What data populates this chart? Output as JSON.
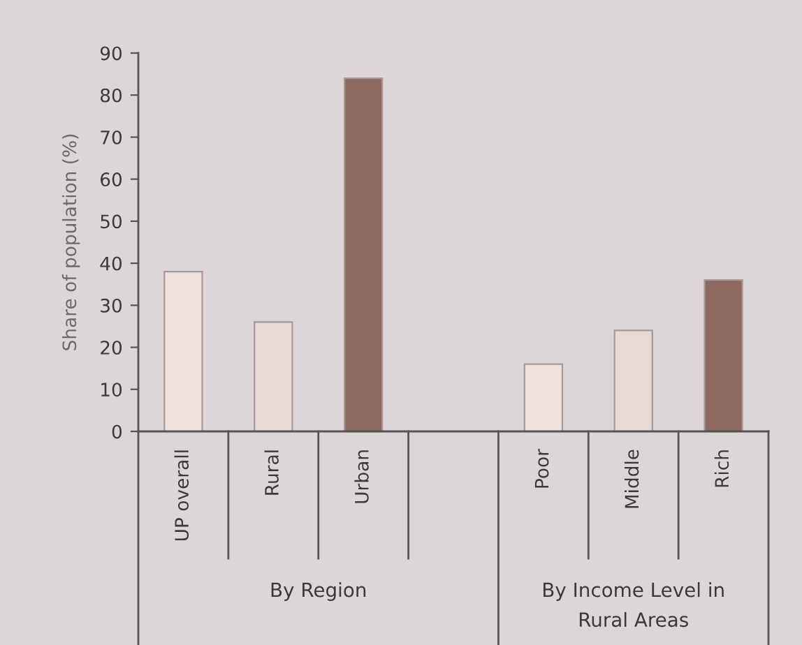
{
  "chart_data": {
    "type": "bar",
    "ylabel": "Share of population (%)",
    "categories": [
      "UP overall",
      "Rural",
      "Urban",
      null,
      "Poor",
      "Middle",
      "Rich"
    ],
    "values": [
      38,
      26,
      84,
      null,
      16,
      24,
      36
    ],
    "colors": [
      "#efe3df",
      "#e8dbd7",
      "#8c6a5f",
      null,
      "#efe1dd",
      "#e8dbd7",
      "#8c6a5f"
    ],
    "ylim": [
      0,
      90
    ],
    "yticks": [
      0,
      10,
      20,
      30,
      40,
      50,
      60,
      70,
      80,
      90
    ],
    "annotations": [
      "By Region",
      "By Income Level in\nRural Areas"
    ]
  }
}
